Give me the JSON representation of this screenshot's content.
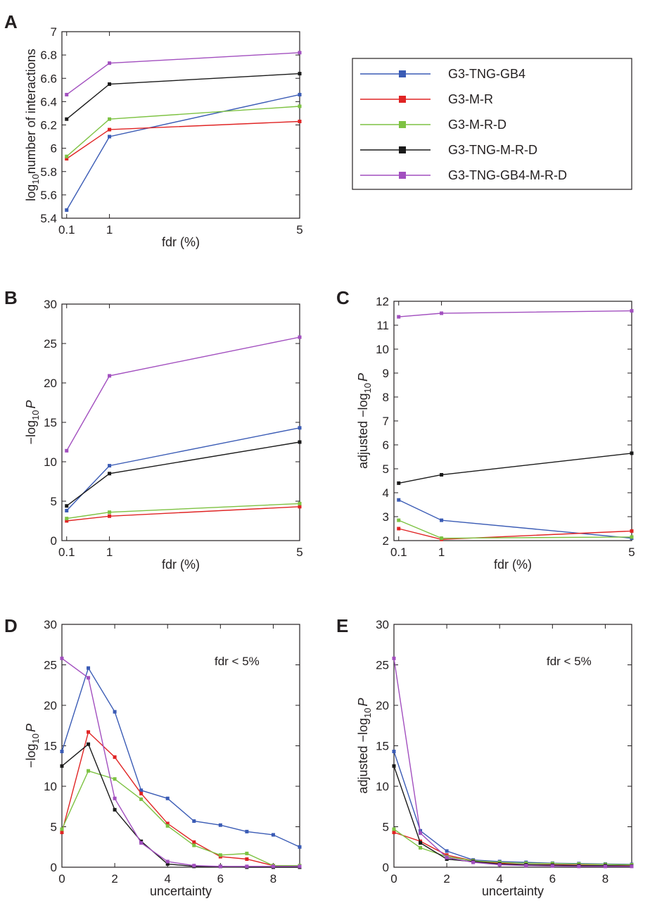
{
  "legend": {
    "entries": [
      {
        "name": "G3-TNG-GB4",
        "color": "#3a5bb5"
      },
      {
        "name": "G3-M-R",
        "color": "#e02424"
      },
      {
        "name": "G3-M-R-D",
        "color": "#7dc242"
      },
      {
        "name": "G3-TNG-M-R-D",
        "color": "#1a1a1a"
      },
      {
        "name": "G3-TNG-GB4-M-R-D",
        "color": "#a24fbf"
      }
    ]
  },
  "chart_data": [
    {
      "panel": "A",
      "type": "line",
      "x": [
        0.1,
        1,
        5
      ],
      "xticks": [
        "0.1",
        "1",
        "5"
      ],
      "xlim": [
        0,
        5
      ],
      "ylim": [
        5.4,
        7
      ],
      "yticks": [
        "5.4",
        "5.6",
        "5.8",
        "6",
        "6.2",
        "6.4",
        "6.6",
        "6.8",
        "7"
      ],
      "xlabel": "fdr (%)",
      "ylabel_pre": "log",
      "ylabel_sub": "10",
      "ylabel_post": "number of interactions",
      "series": [
        {
          "name": "G3-TNG-GB4",
          "values": [
            5.47,
            6.1,
            6.46
          ]
        },
        {
          "name": "G3-M-R",
          "values": [
            5.91,
            6.16,
            6.23
          ]
        },
        {
          "name": "G3-M-R-D",
          "values": [
            5.93,
            6.25,
            6.36
          ]
        },
        {
          "name": "G3-TNG-M-R-D",
          "values": [
            6.25,
            6.55,
            6.64
          ]
        },
        {
          "name": "G3-TNG-GB4-M-R-D",
          "values": [
            6.46,
            6.73,
            6.82
          ]
        }
      ]
    },
    {
      "panel": "B",
      "type": "line",
      "x": [
        0.1,
        1,
        5
      ],
      "xticks": [
        "0.1",
        "1",
        "5"
      ],
      "xlim": [
        0,
        5
      ],
      "ylim": [
        0,
        30
      ],
      "yticks": [
        "0",
        "5",
        "10",
        "15",
        "20",
        "25",
        "30"
      ],
      "xlabel": "fdr (%)",
      "ylabel_pre": "−log",
      "ylabel_sub": "10",
      "ylabel_post": "P",
      "series": [
        {
          "name": "G3-TNG-GB4",
          "values": [
            3.8,
            9.5,
            14.3
          ]
        },
        {
          "name": "G3-M-R",
          "values": [
            2.5,
            3.1,
            4.3
          ]
        },
        {
          "name": "G3-M-R-D",
          "values": [
            2.8,
            3.6,
            4.7
          ]
        },
        {
          "name": "G3-TNG-M-R-D",
          "values": [
            4.4,
            8.5,
            12.5
          ]
        },
        {
          "name": "G3-TNG-GB4-M-R-D",
          "values": [
            11.4,
            20.9,
            25.8
          ]
        }
      ]
    },
    {
      "panel": "C",
      "type": "line",
      "x": [
        0.1,
        1,
        5
      ],
      "xticks": [
        "0.1",
        "1",
        "5"
      ],
      "xlim": [
        0,
        5
      ],
      "ylim": [
        2,
        12
      ],
      "yticks": [
        "2",
        "3",
        "4",
        "5",
        "6",
        "7",
        "8",
        "9",
        "10",
        "11",
        "12"
      ],
      "xlabel": "fdr (%)",
      "ylabel_pre": "adjusted −log",
      "ylabel_sub": "10",
      "ylabel_post": "P",
      "series": [
        {
          "name": "G3-TNG-GB4",
          "values": [
            3.7,
            2.85,
            2.1
          ]
        },
        {
          "name": "G3-M-R",
          "values": [
            2.5,
            2.05,
            2.4
          ]
        },
        {
          "name": "G3-M-R-D",
          "values": [
            2.85,
            2.1,
            2.15
          ]
        },
        {
          "name": "G3-TNG-M-R-D",
          "values": [
            4.4,
            4.75,
            5.65
          ]
        },
        {
          "name": "G3-TNG-GB4-M-R-D",
          "values": [
            11.35,
            11.5,
            11.6
          ]
        }
      ]
    },
    {
      "panel": "D",
      "type": "line",
      "x": [
        0,
        1,
        2,
        3,
        4,
        5,
        6,
        7,
        8,
        9
      ],
      "xticks": [
        "0",
        "2",
        "4",
        "6",
        "8"
      ],
      "xtick_values": [
        0,
        2,
        4,
        6,
        8
      ],
      "xlim": [
        0,
        9
      ],
      "ylim": [
        0,
        30
      ],
      "yticks": [
        "0",
        "5",
        "10",
        "15",
        "20",
        "25",
        "30"
      ],
      "xlabel": "uncertainty",
      "ylabel_pre": "−log",
      "ylabel_sub": "10",
      "ylabel_post": "P",
      "annotation": "fdr < 5%",
      "series": [
        {
          "name": "G3-TNG-GB4",
          "values": [
            14.3,
            24.6,
            19.2,
            9.5,
            8.5,
            5.7,
            5.2,
            4.4,
            4.0,
            2.5
          ]
        },
        {
          "name": "G3-M-R",
          "values": [
            4.3,
            16.7,
            13.6,
            9.1,
            5.4,
            3.1,
            1.3,
            1.0,
            0.2,
            0.1
          ]
        },
        {
          "name": "G3-M-R-D",
          "values": [
            4.7,
            11.9,
            10.9,
            8.4,
            5.1,
            2.7,
            1.5,
            1.7,
            0.2,
            0.2
          ]
        },
        {
          "name": "G3-TNG-M-R-D",
          "values": [
            12.5,
            15.2,
            7.1,
            3.2,
            0.4,
            0.1,
            0.1,
            0.0,
            0.0,
            0.0
          ]
        },
        {
          "name": "G3-TNG-GB4-M-R-D",
          "values": [
            25.8,
            23.4,
            8.5,
            3.0,
            0.7,
            0.2,
            0.1,
            0.1,
            0.1,
            0.1
          ]
        }
      ]
    },
    {
      "panel": "E",
      "type": "line",
      "x": [
        0,
        1,
        2,
        3,
        4,
        5,
        6,
        7,
        8,
        9
      ],
      "xticks": [
        "0",
        "2",
        "4",
        "6",
        "8"
      ],
      "xtick_values": [
        0,
        2,
        4,
        6,
        8
      ],
      "xlim": [
        0,
        9
      ],
      "ylim": [
        0,
        30
      ],
      "yticks": [
        "0",
        "5",
        "10",
        "15",
        "20",
        "25",
        "30"
      ],
      "xlabel": "uncertainty",
      "ylabel_pre": "adjusted −log",
      "ylabel_sub": "10",
      "ylabel_post": "P",
      "annotation": "fdr < 5%",
      "series": [
        {
          "name": "G3-TNG-GB4",
          "values": [
            14.3,
            4.5,
            2.0,
            0.9,
            0.7,
            0.6,
            0.5,
            0.45,
            0.4,
            0.35
          ]
        },
        {
          "name": "G3-M-R",
          "values": [
            4.3,
            3.2,
            1.5,
            0.8,
            0.5,
            0.3,
            0.3,
            0.25,
            0.2,
            0.2
          ]
        },
        {
          "name": "G3-M-R-D",
          "values": [
            4.7,
            2.4,
            1.3,
            0.8,
            0.6,
            0.5,
            0.45,
            0.4,
            0.35,
            0.3
          ]
        },
        {
          "name": "G3-TNG-M-R-D",
          "values": [
            12.5,
            3.0,
            1.0,
            0.7,
            0.4,
            0.3,
            0.25,
            0.2,
            0.2,
            0.15
          ]
        },
        {
          "name": "G3-TNG-GB4-M-R-D",
          "values": [
            25.8,
            4.2,
            1.2,
            0.6,
            0.3,
            0.2,
            0.15,
            0.1,
            0.1,
            0.1
          ]
        }
      ]
    }
  ]
}
